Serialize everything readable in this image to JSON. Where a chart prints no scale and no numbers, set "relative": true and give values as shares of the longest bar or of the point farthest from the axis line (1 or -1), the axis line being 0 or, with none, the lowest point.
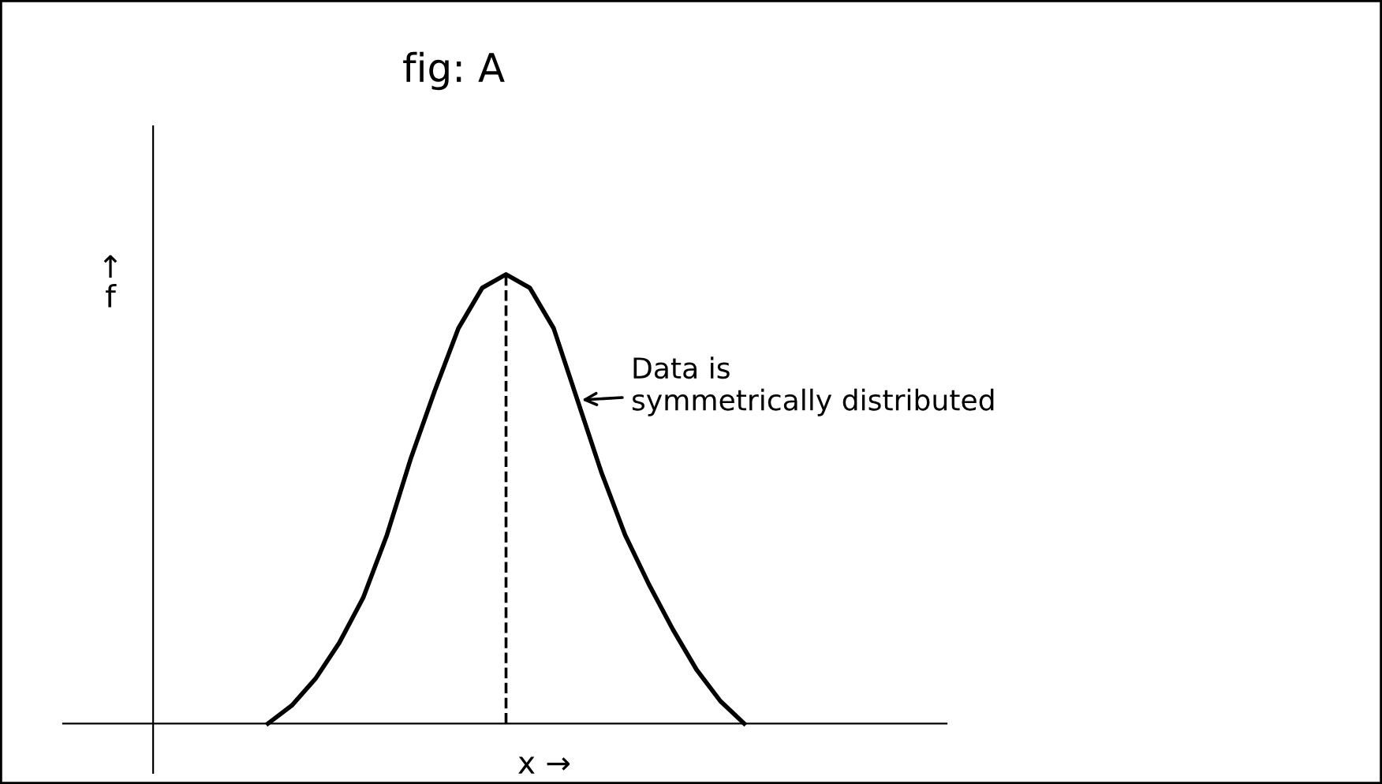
{
  "chart_data": {
    "type": "line",
    "title": "fig: A",
    "xlabel": "x →",
    "ylabel": "↑\nf",
    "relative": true,
    "color": "#000000",
    "categories": [
      null,
      null,
      null,
      null,
      null,
      null,
      null,
      null,
      null,
      null,
      null,
      null,
      null,
      null,
      null,
      null,
      null,
      null,
      null,
      null,
      null
    ],
    "values": [
      0,
      0.04,
      0.1,
      0.18,
      0.28,
      0.42,
      0.59,
      0.74,
      0.88,
      0.97,
      1,
      0.97,
      0.88,
      0.72,
      0.56,
      0.42,
      0.31,
      0.21,
      0.12,
      0.05,
      0
    ],
    "annotations": [
      "Data is\nsymmetrically distributed"
    ],
    "grid": false,
    "legend": false,
    "marker": "none",
    "line_style": "solid"
  }
}
